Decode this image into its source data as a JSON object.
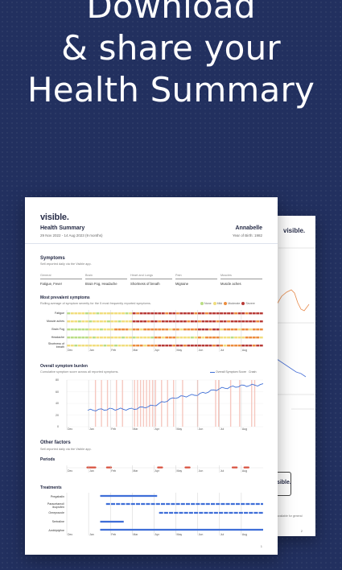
{
  "headline": {
    "line1": "Download",
    "line2": "& share your",
    "line3": "Health Summary"
  },
  "back_page": {
    "logo": "visible.",
    "card_text": "isible.",
    "note_text": "available for general",
    "page_number": "2"
  },
  "report": {
    "logo": "visible.",
    "title": "Health Summary",
    "date_range": "29 Nov 2022 - 14 Aug 2023 (9 months)",
    "user_name": "Annabelle",
    "birth_year": "Year of Birth: 1982",
    "page_number": "1"
  },
  "symptoms": {
    "title": "Symptoms",
    "subtitle": "Self-reported daily via the Visible app.",
    "categories": [
      {
        "header": "General",
        "value": "Fatigue, Fever"
      },
      {
        "header": "Brain",
        "value": "Brain Fog, Headache"
      },
      {
        "header": "Heart and Lungs",
        "value": "Shortness of breath"
      },
      {
        "header": "Pain",
        "value": "Migraine"
      },
      {
        "header": "Muscles",
        "value": "Muscle aches"
      }
    ]
  },
  "prevalent": {
    "title": "Most prevalent symptoms",
    "subtitle": "Rolling average of symptom severity for the 5 most frequently reported symptoms.",
    "legend": [
      {
        "label": "None",
        "color": "#b9dd84"
      },
      {
        "label": "Mild",
        "color": "#f1dd7c"
      },
      {
        "label": "Moderate",
        "color": "#ec8c3e"
      },
      {
        "label": "Severe",
        "color": "#b83a36"
      }
    ],
    "rows": [
      "Fatigue",
      "Muscle aches",
      "Brain Fog",
      "Headache",
      "Shortness of breath"
    ],
    "months": [
      "Dec",
      "Jan",
      "Feb",
      "Mar",
      "Apr",
      "May",
      "Jun",
      "Jul",
      "Aug"
    ]
  },
  "burden": {
    "title": "Overall symptom burden",
    "subtitle": "Cumulative symptom score across all reported symptoms.",
    "legend_line": "Overall Symptom Score",
    "legend_crash": "Crash",
    "y_ticks": [
      "80",
      "60",
      "40",
      "20",
      "0"
    ],
    "months": [
      "Dec",
      "Jan",
      "Feb",
      "Mar",
      "Apr",
      "May",
      "Jun",
      "Jul",
      "Aug"
    ]
  },
  "other": {
    "title": "Other factors",
    "subtitle": "Self-reported daily via the Visible app.",
    "periods_title": "Periods",
    "treatments_title": "Treatments",
    "treatments": [
      "Pregabalin",
      "Paracetamol/ ibuprofen",
      "Omeprazole",
      "Sertraline",
      "Amitriptyline"
    ],
    "months": [
      "Dec",
      "Jan",
      "Feb",
      "Mar",
      "Apr",
      "May",
      "Jun",
      "Jul",
      "Aug"
    ]
  },
  "colors": {
    "background": "#22305f",
    "heat_none": "#b9dd84",
    "heat_mild": "#f1dd7c",
    "heat_moderate": "#ec8c3e",
    "heat_severe": "#b83a36",
    "line": "#3f6fd6",
    "crash": "#f6c8c0",
    "period": "#d8503f",
    "treatment": "#3e6ed8"
  },
  "chart_data": [
    {
      "type": "heatmap",
      "title": "Most prevalent symptoms",
      "rows": [
        "Fatigue",
        "Muscle aches",
        "Brain Fog",
        "Headache",
        "Shortness of breath"
      ],
      "columns": [
        "Dec",
        "Jan",
        "Feb",
        "Mar",
        "Apr",
        "May",
        "Jun",
        "Jul",
        "Aug"
      ],
      "values": [
        [
          1,
          1,
          1,
          3,
          3,
          3,
          3,
          3,
          3
        ],
        [
          1,
          1,
          1,
          3,
          3,
          3,
          3,
          3,
          3
        ],
        [
          0,
          1,
          2,
          2,
          2,
          2,
          3,
          2,
          2
        ],
        [
          0,
          1,
          1,
          1,
          2,
          1,
          2,
          1,
          2
        ],
        [
          1,
          1,
          1,
          2,
          3,
          3,
          3,
          2,
          3
        ]
      ]
    },
    {
      "type": "line",
      "title": "Overall symptom burden",
      "x": [
        "Dec",
        "Jan",
        "Feb",
        "Mar",
        "Apr",
        "May",
        "Jun",
        "Jul",
        "Aug"
      ],
      "series": [
        {
          "name": "Overall Symptom Score",
          "values": [
            28,
            30,
            30,
            36,
            50,
            55,
            65,
            70,
            72
          ]
        }
      ],
      "ylim": [
        0,
        80
      ]
    }
  ]
}
